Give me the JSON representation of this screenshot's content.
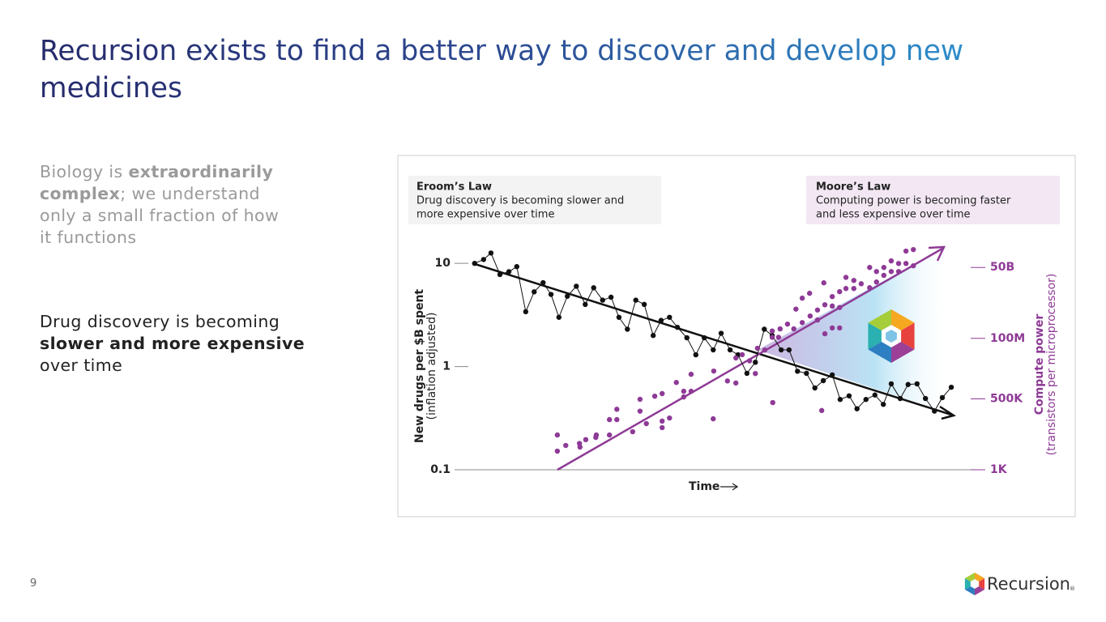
{
  "header": {
    "title_lines": [
      "Recursion exists to find a better way to discover and develop new",
      "medicines"
    ]
  },
  "body": {
    "paragraphs": [
      {
        "lines": [
          [
            {
              "text": "Biology is "
            },
            {
              "text": "extraordinarily",
              "bold": true
            }
          ],
          [
            {
              "text": "complex",
              "bold": true
            },
            {
              "text": "; we understand"
            }
          ],
          [
            {
              "text": "only a small fraction of how"
            }
          ],
          [
            {
              "text": "it functions"
            }
          ]
        ]
      },
      {
        "lines": [
          [
            {
              "text": "Drug discovery is becoming"
            }
          ],
          [
            {
              "text": "slower and more expensive",
              "bold": true
            }
          ],
          [
            {
              "text": "over time"
            }
          ]
        ]
      }
    ]
  },
  "chart_data": {
    "type": "line",
    "xlabel": "Time",
    "ylabel": [
      "New drugs per $B spent",
      "(inflation adjusted)"
    ],
    "y2label": [
      "Compute power",
      "(transistors per microprocessor)"
    ],
    "annotations": [
      [
        "Drug discovery is becoming slower and",
        "more expensive over time"
      ],
      [
        "Computing power is becoming faster",
        "and less expensive over time"
      ]
    ],
    "xlim": [
      0,
      100
    ],
    "ylim": [
      0.1,
      14.4
    ],
    "yscale": "log",
    "yticks": [
      0.1,
      1,
      10
    ],
    "y2lim": [
      1000,
      300000000000.0
    ],
    "y2scale": "log",
    "y2ticks": [
      {
        "value": 1000,
        "label": "1K"
      },
      {
        "value": 500000,
        "label": "500K"
      },
      {
        "value": 100000000,
        "label": "100M"
      },
      {
        "value": 50000000000,
        "label": "50B"
      }
    ],
    "series": [
      {
        "name": "Eroom’s Law",
        "color": "#111111",
        "type": "line",
        "x": [
          3.2,
          4.9,
          6.3,
          8,
          9.7,
          11.2,
          12.9,
          14.5,
          16.2,
          17.7,
          19.2,
          20.8,
          22.5,
          24.2,
          25.8,
          27.5,
          29.1,
          30.6,
          32.2,
          33.8,
          35.4,
          37.1,
          38.6,
          40.2,
          41.7,
          43.5,
          45.2,
          46.8,
          48.5,
          50,
          51.7,
          53.2,
          54.9,
          56.5,
          58.2,
          59.7,
          61.4,
          62.9,
          64.5,
          66.2,
          67.8,
          69.4,
          71.1,
          72.6,
          74.3,
          75.8,
          77.5,
          79.2,
          80.8,
          82.3,
          84,
          85.5,
          87.2,
          88.8,
          90.5,
          92,
          93.7
        ],
        "values": [
          10,
          10.9,
          12.6,
          7.8,
          8.3,
          9.3,
          3.4,
          5.3,
          6.5,
          5.0,
          3.0,
          4.8,
          6.0,
          4.0,
          5.8,
          4.4,
          4.7,
          3.0,
          2.3,
          4.4,
          4.0,
          2.0,
          2.8,
          3.0,
          2.4,
          1.9,
          1.3,
          1.9,
          1.45,
          2.1,
          1.45,
          1.3,
          0.86,
          1.1,
          2.3,
          2.0,
          1.45,
          1.45,
          0.9,
          0.86,
          0.62,
          0.73,
          0.83,
          0.48,
          0.52,
          0.39,
          0.48,
          0.53,
          0.43,
          0.68,
          0.49,
          0.67,
          0.68,
          0.49,
          0.37,
          0.5,
          0.63
        ]
      },
      {
        "name": "Moore’s Law",
        "color": "#8e3a96",
        "type": "scatter",
        "axis": "y2",
        "x": [
          18.9,
          18.9,
          20.5,
          23.1,
          23.2,
          24.3,
          26.2,
          26.3,
          28.8,
          28.8,
          30.2,
          30.2,
          33.2,
          34.6,
          34.6,
          35.8,
          37.4,
          38.8,
          38.8,
          40.2,
          38.8,
          41.5,
          42.9,
          42.9,
          44.3,
          44.3,
          48.5,
          48.6,
          51.2,
          52.8,
          52.8,
          54,
          55.4,
          56.5,
          56.9,
          58.3,
          59.7,
          59.7,
          60.9,
          61.2,
          62.6,
          63.8,
          64.2,
          65.4,
          65.4,
          66.8,
          66.9,
          68.3,
          68.3,
          69.5,
          69.7,
          69.7,
          71.1,
          71.1,
          71.1,
          72.5,
          72.5,
          72.5,
          73.7,
          73.7,
          75.2,
          75.2,
          76.6,
          78.2,
          78.2,
          79.5,
          79.5,
          80.9,
          80.9,
          82.3,
          82.3,
          83.7,
          83.7,
          85.1,
          85.1,
          86.5,
          86.5,
          59.8,
          69.1
        ],
        "values": [
          21000.0,
          5100.0,
          8400.0,
          10000.0,
          7300.0,
          14000.0,
          17000.0,
          21000.0,
          21000.0,
          81000.0,
          81000.0,
          200000.0,
          28000.0,
          170000.0,
          480000.0,
          57000.0,
          630000.0,
          790000.0,
          71000.0,
          93000.0,
          40000.0,
          2100000.0,
          970000.0,
          590000.0,
          4300000.0,
          970000.0,
          87000.0,
          5700000.0,
          2400000.0,
          2000000.0,
          18000000.0,
          24000000.0,
          14000000.0,
          4600000.0,
          42000000.0,
          36000000.0,
          190000000.0,
          110000000.0,
          110000000.0,
          230000000.0,
          350000000.0,
          230000000.0,
          1300000000.0,
          400000000.0,
          3400000000.0,
          5200000000.0,
          710000000.0,
          1200000000.0,
          500000000.0,
          13000000000.0,
          1900000000.0,
          150000000.0,
          3900000000.0,
          1700000000.0,
          250000000.0,
          6000000000.0,
          1500000000.0,
          250000000.0,
          21000000000.0,
          7900000000.0,
          16000000000.0,
          7900000000.0,
          12000000000.0,
          50000000000.0,
          8500000000.0,
          35000000000.0,
          14000000000.0,
          50000000000.0,
          25000000000.0,
          89000000000.0,
          35000000000.0,
          71000000000.0,
          35000000000.0,
          210000000000.0,
          71000000000.0,
          240000000000.0,
          58000000000.0,
          360000.0,
          180000.0
        ]
      }
    ]
  },
  "footer": {
    "page_number": "9"
  },
  "logo": {
    "text": "Recursion",
    "mark": "®"
  }
}
